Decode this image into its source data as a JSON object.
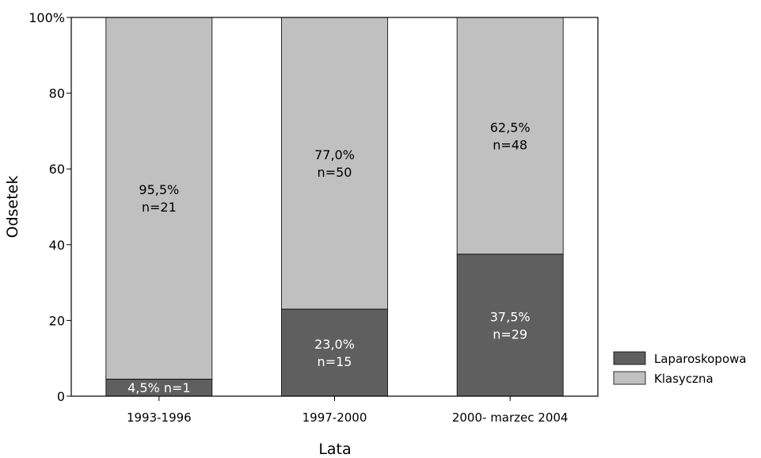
{
  "chart_data": {
    "type": "bar",
    "stacked": true,
    "xlabel": "Lata",
    "ylabel": "Odsetek",
    "ylim": [
      0,
      100
    ],
    "yticks": [
      0,
      20,
      40,
      60,
      80,
      100
    ],
    "ytick_labels": [
      "0",
      "20",
      "40",
      "60",
      "80",
      "100%"
    ],
    "categories": [
      "1993-1996",
      "1997-2000",
      "2000- marzec 2004"
    ],
    "series": [
      {
        "name": "Laparoskopowa",
        "color": "#5f5f5f",
        "label_color": "#ffffff",
        "values": [
          4.5,
          23.0,
          37.5
        ],
        "labels": [
          [
            "4,5%  n=1"
          ],
          [
            "23,0%",
            "n=15"
          ],
          [
            "37,5%",
            "n=29"
          ]
        ]
      },
      {
        "name": "Klasyczna",
        "color": "#c0c0c0",
        "label_color": "#000000",
        "values": [
          95.5,
          77.0,
          62.5
        ],
        "labels": [
          [
            "95,5%",
            "n=21"
          ],
          [
            "77,0%",
            "n=50"
          ],
          [
            "62,5%",
            "n=48"
          ]
        ]
      }
    ],
    "legend_position": "right",
    "grid": false
  }
}
